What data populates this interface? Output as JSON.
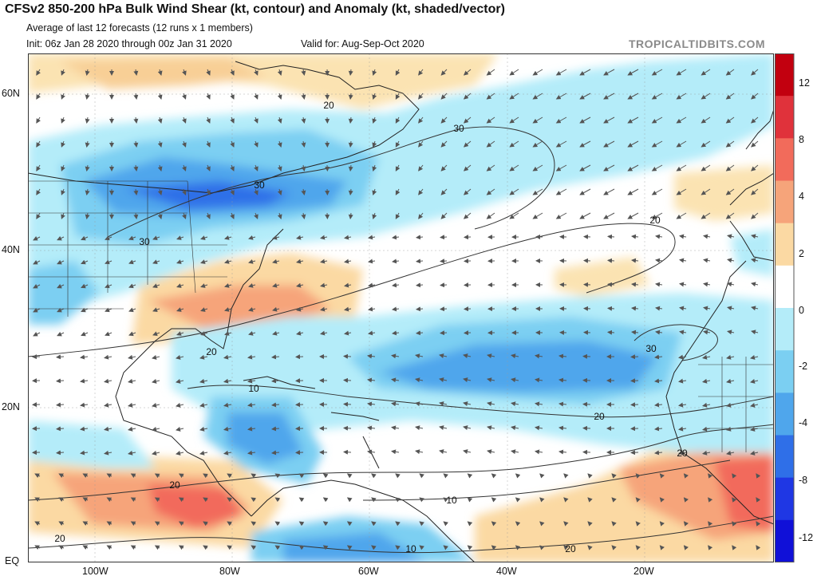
{
  "header": {
    "title": "CFSv2 850-200 hPa Bulk Wind Shear (kt, contour) and Anomaly (kt, shaded/vector)",
    "subtitle": "Average of last 12 forecasts (12 runs x 1 members)",
    "init": "Init: 06z Jan 28 2020 through 00z Jan 31 2020",
    "valid": "Valid for: Aug-Sep-Oct 2020",
    "brand": "TROPICALTIDBITS.COM"
  },
  "axes": {
    "lat_labels": [
      "60N",
      "40N",
      "20N",
      "EQ"
    ],
    "lon_labels": [
      "100W",
      "80W",
      "60W",
      "40W",
      "20W"
    ]
  },
  "contour_labels": [
    "20",
    "30",
    "30",
    "30",
    "20",
    "20",
    "10",
    "20",
    "30",
    "20",
    "10",
    "10",
    "20",
    "20",
    "20"
  ],
  "colorbar": {
    "labels": [
      "12",
      "8",
      "4",
      "2",
      "0",
      "-2",
      "-4",
      "-8",
      "-12"
    ],
    "colors": [
      "#c2000f",
      "#e0323b",
      "#f26b5b",
      "#f6a47a",
      "#fbd9a3",
      "#ffffff",
      "#b4ecf9",
      "#7bcff2",
      "#4fa6ec",
      "#2f6fe8",
      "#1f37e4",
      "#1010d8"
    ]
  }
}
